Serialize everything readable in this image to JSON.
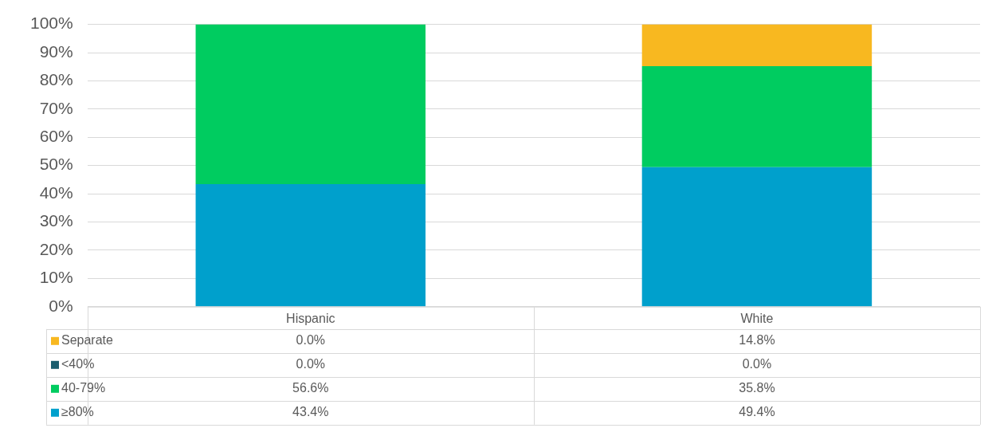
{
  "chart_data": {
    "type": "bar",
    "stacked": true,
    "categories": [
      "Hispanic",
      "White"
    ],
    "series": [
      {
        "name": "≥80%",
        "color": "#00a0cc",
        "values": [
          43.4,
          49.4
        ],
        "value_labels": [
          "43.4%",
          "49.4%"
        ]
      },
      {
        "name": "40-79%",
        "color": "#00cc60",
        "values": [
          56.6,
          35.8
        ],
        "value_labels": [
          "56.6%",
          "35.8%"
        ]
      },
      {
        "name": "<40%",
        "color": "#1b5e6e",
        "values": [
          0,
          0
        ],
        "value_labels": [
          "0.0%",
          "0.0%"
        ]
      },
      {
        "name": "Separate",
        "color": "#f8b820",
        "values": [
          0,
          14.8
        ],
        "value_labels": [
          "0.0%",
          "14.8%"
        ]
      }
    ],
    "ylim": [
      0,
      100
    ],
    "yticks": [
      {
        "value": 0,
        "label": "0%"
      },
      {
        "value": 10,
        "label": "10%"
      },
      {
        "value": 20,
        "label": "20%"
      },
      {
        "value": 30,
        "label": "30%"
      },
      {
        "value": 40,
        "label": "40%"
      },
      {
        "value": 50,
        "label": "50%"
      },
      {
        "value": 60,
        "label": "60%"
      },
      {
        "value": 70,
        "label": "70%"
      },
      {
        "value": 80,
        "label": "80%"
      },
      {
        "value": 90,
        "label": "90%"
      },
      {
        "value": 100,
        "label": "100%"
      }
    ],
    "grid": "y",
    "legend": "bottom left"
  }
}
